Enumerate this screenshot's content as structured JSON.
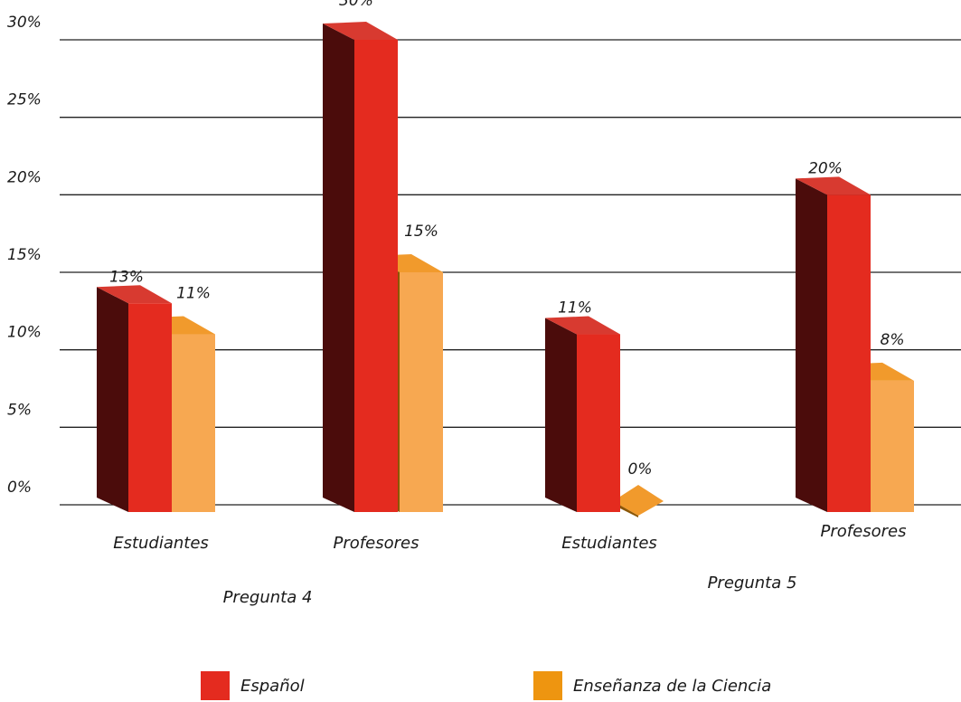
{
  "chart_data": {
    "type": "bar",
    "title": "",
    "xlabel": "",
    "ylabel": "",
    "ylim": [
      0,
      30
    ],
    "yticks": [
      "0%",
      "5%",
      "10%",
      "15%",
      "20%",
      "25%",
      "30%"
    ],
    "groups": [
      "Pregunta 4",
      "Pregunta 5"
    ],
    "categories": [
      "Estudiantes",
      "Profesores",
      "Estudiantes",
      "Profesores"
    ],
    "series": [
      {
        "name": "Español",
        "values": [
          13,
          30,
          11,
          20
        ],
        "labels": [
          "13%",
          "30%",
          "11%",
          "20%"
        ],
        "color": "#e42b1f"
      },
      {
        "name": "Enseñanza de la Ciencia",
        "values": [
          11,
          15,
          0,
          8
        ],
        "labels": [
          "11%",
          "15%",
          "0%",
          "8%"
        ],
        "color": "#f5a448"
      }
    ],
    "grid": true,
    "legend": "bottom"
  }
}
